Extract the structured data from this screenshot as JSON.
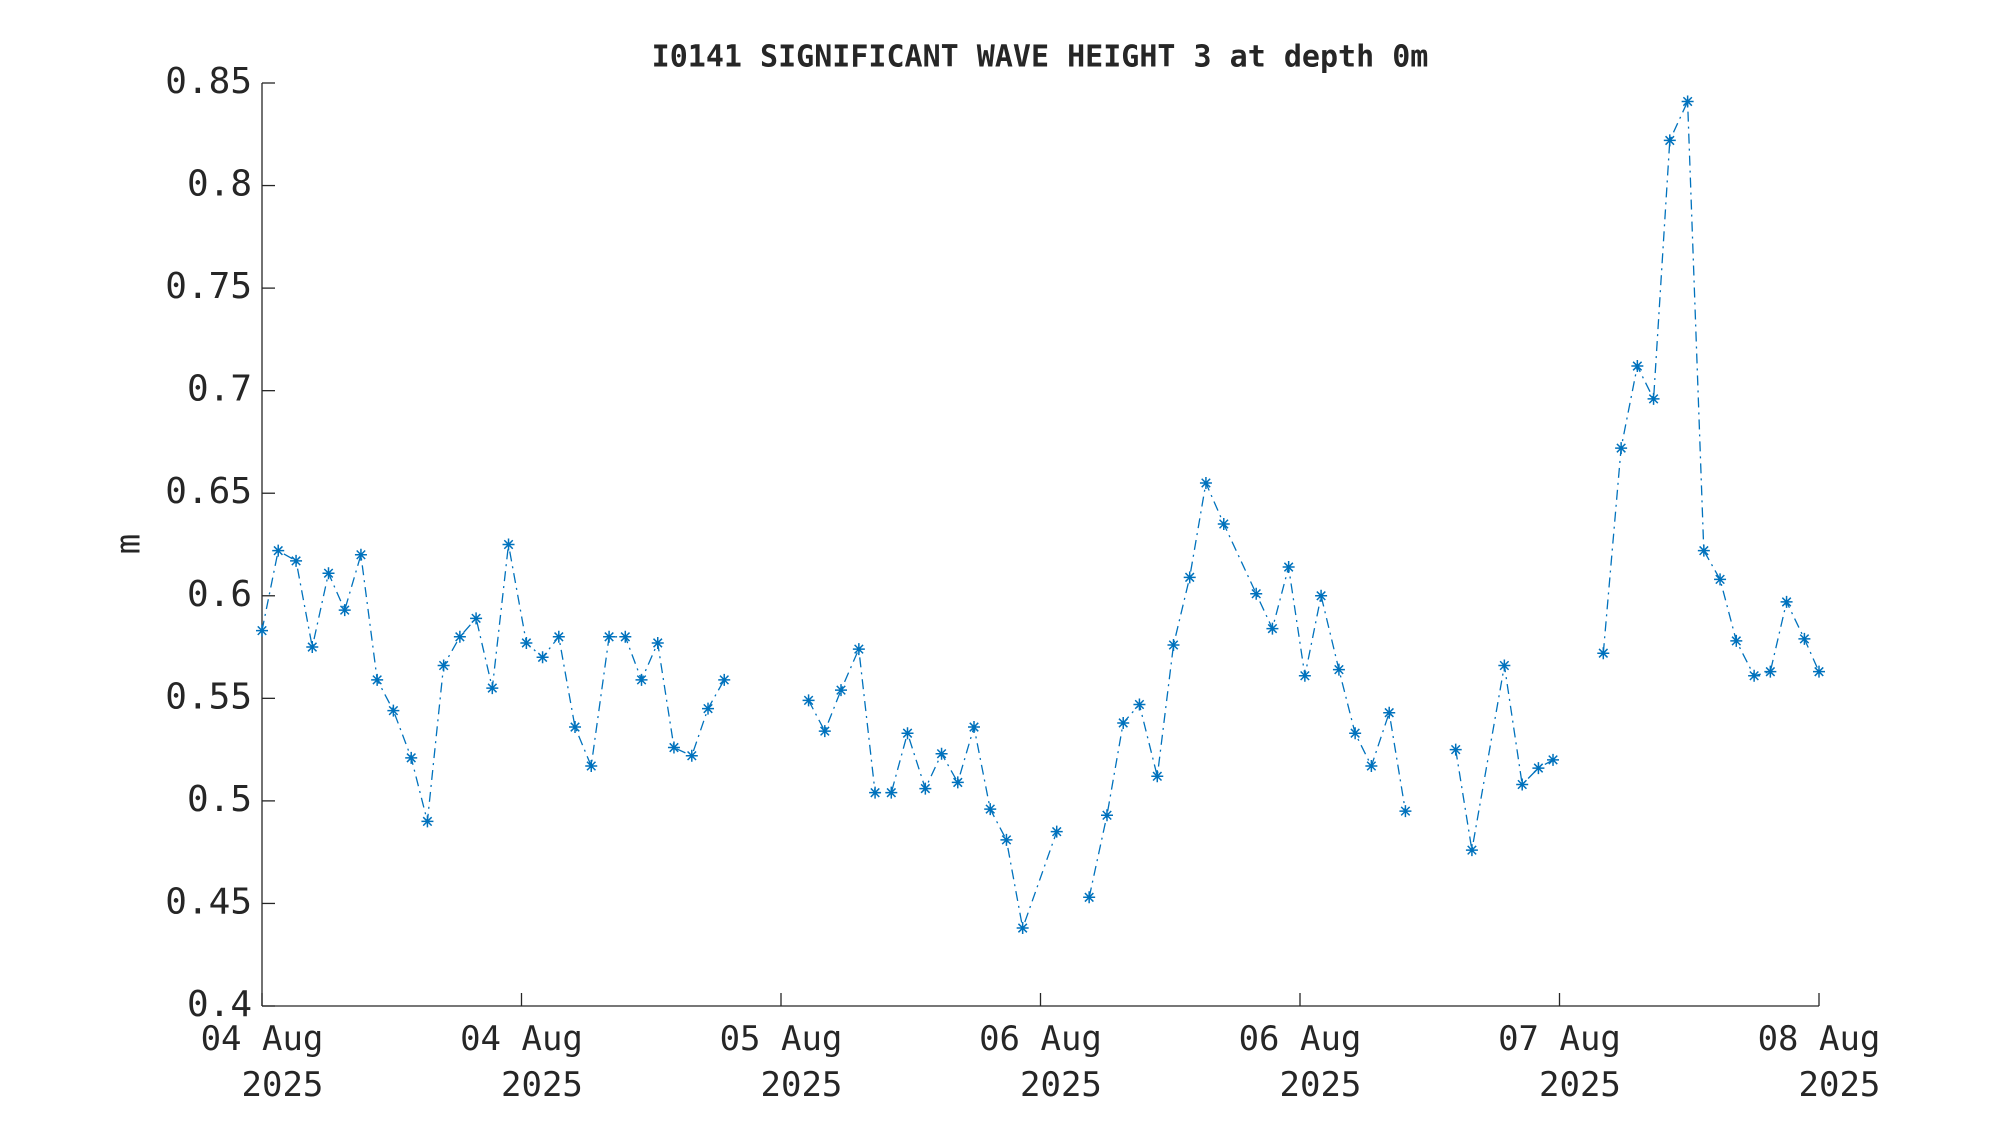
{
  "chart_data": {
    "type": "line",
    "title": "I0141 SIGNIFICANT WAVE HEIGHT 3 at depth 0m",
    "y_label": "m",
    "xlim": [
      0,
      96
    ],
    "xticks": [
      {
        "value": 0,
        "label": "04 Aug\n2025"
      },
      {
        "value": 16,
        "label": "04 Aug\n2025"
      },
      {
        "value": 32,
        "label": "05 Aug\n2025"
      },
      {
        "value": 48,
        "label": "06 Aug\n2025"
      },
      {
        "value": 64,
        "label": "06 Aug\n2025"
      },
      {
        "value": 80,
        "label": "07 Aug\n2025"
      },
      {
        "value": 96,
        "label": "08 Aug\n2025"
      }
    ],
    "ylim": [
      0.4,
      0.85
    ],
    "yticks": [
      0.4,
      0.45,
      0.5,
      0.55,
      0.6,
      0.65,
      0.7,
      0.75,
      0.8,
      0.85
    ],
    "grid": false,
    "series": [
      {
        "name": "significant wave height",
        "color": "#0072bd",
        "x": [
          0,
          1.0,
          2.1,
          3.1,
          4.1,
          5.1,
          6.1,
          7.1,
          8.1,
          9.2,
          10.2,
          11.2,
          12.2,
          13.2,
          14.2,
          15.2,
          16.3,
          17.3,
          18.3,
          19.3,
          20.3,
          21.4,
          22.4,
          23.4,
          24.4,
          25.4,
          26.5,
          27.5,
          28.5,
          null,
          33.7,
          34.7,
          35.7,
          36.8,
          37.8,
          38.8,
          39.8,
          40.9,
          41.9,
          42.9,
          43.9,
          44.9,
          45.9,
          46.9,
          49.0,
          null,
          51.0,
          52.1,
          53.1,
          54.1,
          55.2,
          56.2,
          57.2,
          58.2,
          59.3,
          61.3,
          62.3,
          63.3,
          64.3,
          65.3,
          66.4,
          67.4,
          68.4,
          69.5,
          70.5,
          null,
          73.6,
          74.6,
          76.6,
          77.7,
          78.7,
          79.6,
          null,
          82.7,
          83.8,
          84.8,
          85.8,
          86.8,
          87.9,
          88.9,
          89.9,
          90.9,
          92.0,
          93.0,
          94.0,
          95.1,
          96.0
        ],
        "values": [
          0.583,
          0.622,
          0.617,
          0.575,
          0.611,
          0.593,
          0.62,
          0.559,
          0.544,
          0.521,
          0.49,
          0.566,
          0.58,
          0.589,
          0.555,
          0.625,
          0.577,
          0.57,
          0.58,
          0.536,
          0.517,
          0.58,
          0.58,
          0.559,
          0.577,
          0.526,
          0.522,
          0.545,
          0.559,
          null,
          0.549,
          0.534,
          0.554,
          0.574,
          0.504,
          0.504,
          0.533,
          0.506,
          0.523,
          0.509,
          0.536,
          0.496,
          0.481,
          0.438,
          0.485,
          null,
          0.453,
          0.493,
          0.538,
          0.547,
          0.512,
          0.576,
          0.609,
          0.655,
          0.635,
          0.601,
          0.584,
          0.614,
          0.561,
          0.6,
          0.564,
          0.533,
          0.517,
          0.543,
          0.495,
          null,
          0.525,
          0.476,
          0.566,
          0.508,
          0.516,
          0.52,
          null,
          0.572,
          0.672,
          0.712,
          0.696,
          0.822,
          0.841,
          0.622,
          0.608,
          0.578,
          0.561,
          0.563,
          0.597,
          0.579,
          0.563
        ]
      }
    ]
  }
}
